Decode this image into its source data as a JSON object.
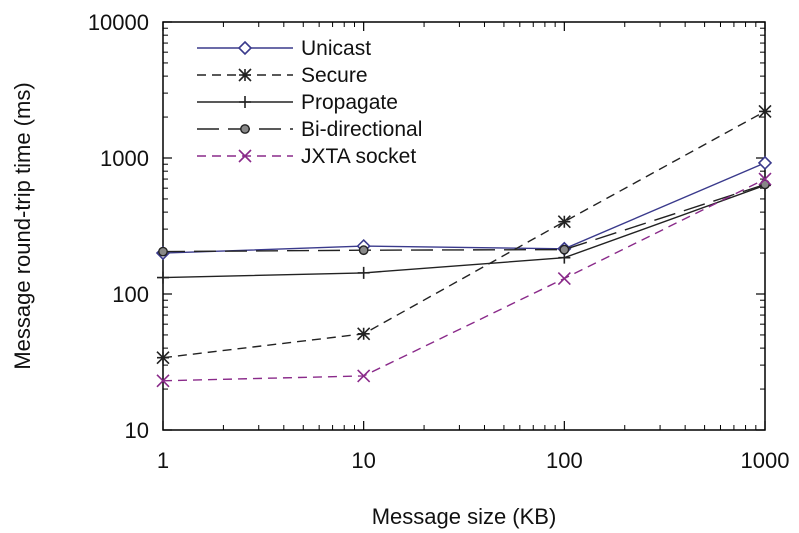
{
  "chart_data": {
    "type": "line",
    "title": "",
    "xlabel": "Message size (KB)",
    "ylabel": "Message round-trip time (ms)",
    "x_scale": "log",
    "y_scale": "log",
    "xlim": [
      1,
      1000
    ],
    "ylim": [
      10,
      10000
    ],
    "x_ticks": [
      "1",
      "10",
      "100",
      "1000"
    ],
    "y_ticks": [
      "10",
      "100",
      "1000",
      "10000"
    ],
    "grid": false,
    "legend_position": "top-left",
    "x": [
      1,
      10,
      100,
      1000
    ],
    "series": [
      {
        "name": "Unicast",
        "values": [
          200,
          225,
          215,
          920
        ],
        "color": "#3a3a8c",
        "dash": "solid",
        "marker": "diamond"
      },
      {
        "name": "Secure",
        "values": [
          34,
          51,
          340,
          2200
        ],
        "color": "#222222",
        "dash": "dashed",
        "marker": "star"
      },
      {
        "name": "Propagate",
        "values": [
          132,
          143,
          185,
          630
        ],
        "color": "#222222",
        "dash": "solid",
        "marker": "plus"
      },
      {
        "name": "Bi-directional",
        "values": [
          205,
          210,
          212,
          640
        ],
        "color": "#222222",
        "dash": "longdash",
        "marker": "circle"
      },
      {
        "name": "JXTA socket",
        "values": [
          23,
          25,
          130,
          700
        ],
        "color": "#8a2a8a",
        "dash": "dashed",
        "marker": "x"
      }
    ]
  }
}
